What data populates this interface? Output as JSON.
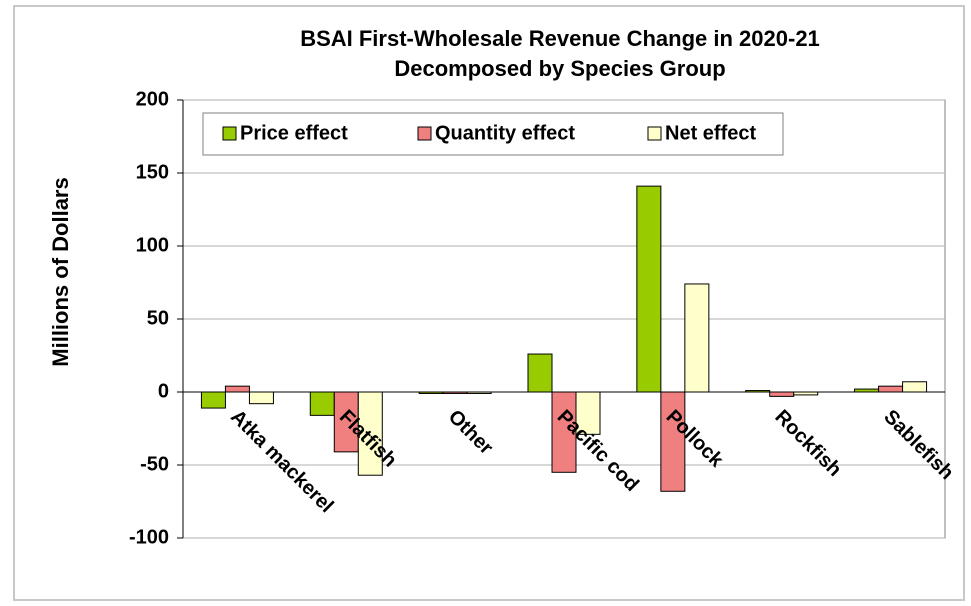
{
  "chart_data": {
    "type": "bar",
    "title": [
      "BSAI First-Wholesale Revenue Change in 2020-21",
      "Decomposed by Species Group"
    ],
    "y_label": "Millions of Dollars",
    "categories": [
      "Atka mackerel",
      "Flatfish",
      "Other",
      "Pacific cod",
      "Pollock",
      "Rockfish",
      "Sablefish"
    ],
    "series": [
      {
        "name": "Price effect",
        "color": "#99cc00",
        "values": [
          -11,
          -16,
          -1,
          26,
          141,
          1,
          2
        ]
      },
      {
        "name": "Quantity effect",
        "color": "#f08080",
        "values": [
          4,
          -41,
          -1,
          -55,
          -68,
          -3,
          4
        ]
      },
      {
        "name": "Net effect",
        "color": "#ffffcc",
        "values": [
          -8,
          -57,
          -1,
          -29,
          74,
          -2,
          7
        ]
      }
    ],
    "ylim": [
      -100,
      200
    ],
    "yticks": [
      -100,
      -50,
      0,
      50,
      100,
      150,
      200
    ],
    "grid": true,
    "legend": "top-left"
  }
}
